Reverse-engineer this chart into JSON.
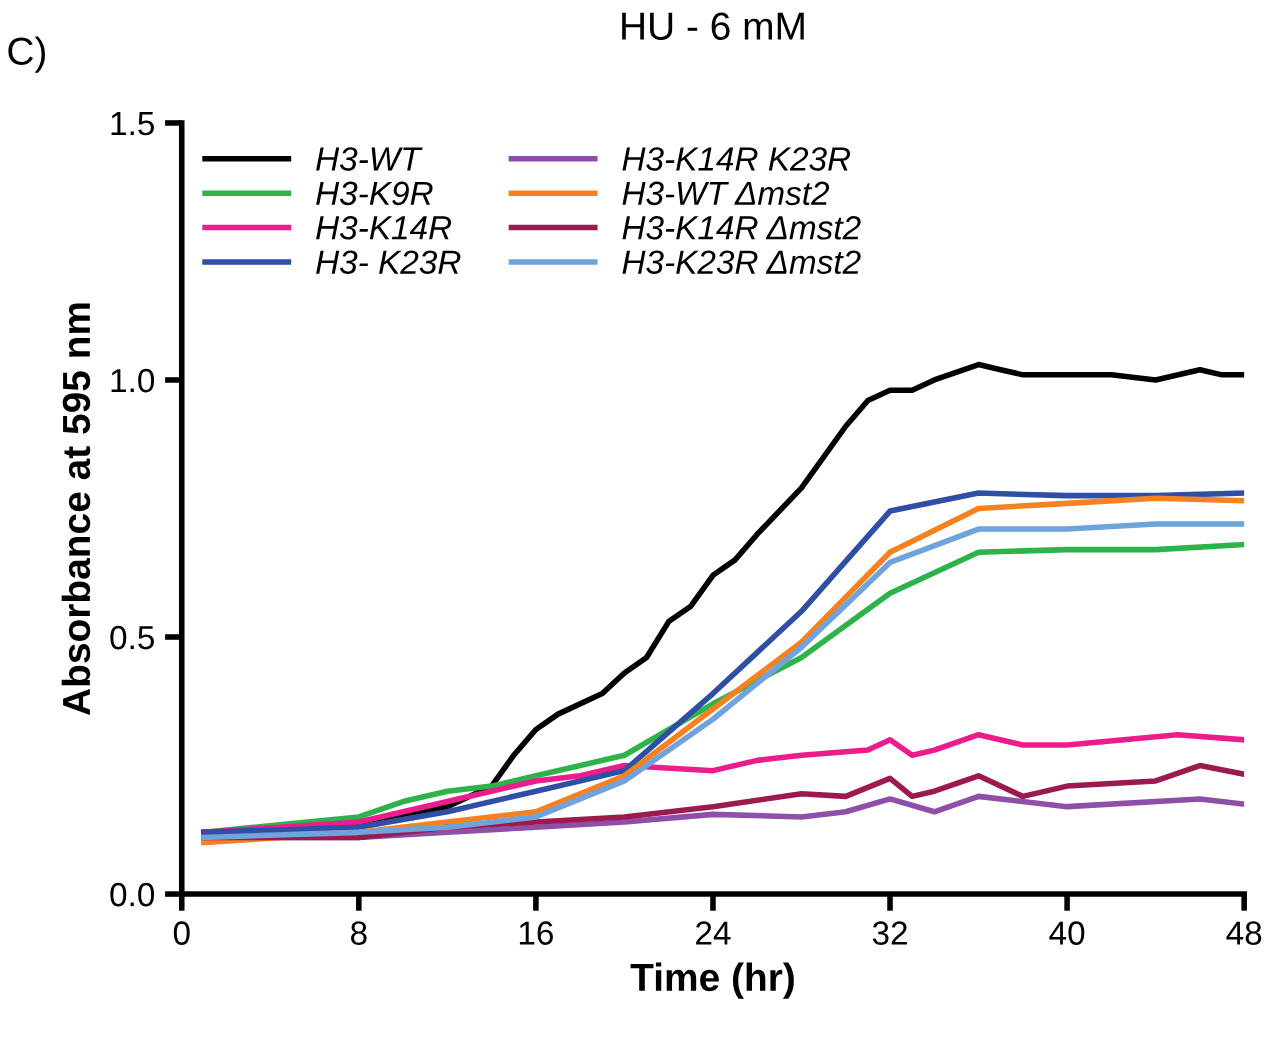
{
  "chart_data": {
    "type": "line",
    "title": "HU - 6 mM",
    "xlabel": "Time (hr)",
    "ylabel": "Absorbance at 595 nm",
    "annotations": [
      "C)"
    ],
    "xlim": [
      0,
      48
    ],
    "xticks": [
      0,
      8,
      16,
      24,
      32,
      40,
      48
    ],
    "ylim": [
      0,
      1.5
    ],
    "yticks": [
      {
        "value": 0,
        "label": "0.0"
      },
      {
        "value": 0.5,
        "label": "0.5"
      },
      {
        "value": 1,
        "label": "1.0"
      },
      {
        "value": 1.5,
        "label": "1.5"
      }
    ],
    "grid": false,
    "legend": "top left",
    "marker": "none",
    "line_style": "solid",
    "series": [
      {
        "name": "H3-WT",
        "color": "#000000",
        "x": [
          1,
          4,
          8,
          12,
          14,
          15,
          16,
          17,
          19,
          20,
          21,
          22,
          23,
          24,
          25,
          26,
          28,
          30,
          31,
          32,
          33,
          34,
          36,
          37,
          38,
          40,
          42,
          44,
          46,
          47,
          48
        ],
        "values": [
          0.12,
          0.12,
          0.14,
          0.17,
          0.21,
          0.27,
          0.32,
          0.35,
          0.39,
          0.43,
          0.46,
          0.53,
          0.56,
          0.62,
          0.65,
          0.7,
          0.79,
          0.91,
          0.96,
          0.98,
          0.98,
          1.0,
          1.03,
          1.02,
          1.01,
          1.01,
          1.01,
          1.0,
          1.02,
          1.01,
          1.01
        ]
      },
      {
        "name": "H3-K9R",
        "color": "#2db34a",
        "x": [
          1,
          8,
          10,
          12,
          14,
          16,
          20,
          24,
          28,
          32,
          36,
          40,
          44,
          48
        ],
        "values": [
          0.12,
          0.15,
          0.18,
          0.2,
          0.21,
          0.23,
          0.27,
          0.37,
          0.46,
          0.585,
          0.665,
          0.67,
          0.67,
          0.68
        ]
      },
      {
        "name": "H3-K14R",
        "color": "#ec1c8c",
        "x": [
          1,
          8,
          12,
          16,
          18,
          20,
          24,
          26,
          28,
          31,
          32,
          33,
          34,
          36,
          38,
          40,
          45,
          48
        ],
        "values": [
          0.12,
          0.14,
          0.18,
          0.22,
          0.23,
          0.25,
          0.24,
          0.26,
          0.27,
          0.28,
          0.3,
          0.27,
          0.28,
          0.31,
          0.29,
          0.29,
          0.31,
          0.3
        ]
      },
      {
        "name": "H3- K23R",
        "color": "#2e4fa3",
        "x": [
          1,
          8,
          12,
          16,
          20,
          24,
          28,
          32,
          36,
          40,
          44,
          48
        ],
        "values": [
          0.12,
          0.13,
          0.16,
          0.2,
          0.24,
          0.39,
          0.55,
          0.745,
          0.78,
          0.775,
          0.775,
          0.78
        ]
      },
      {
        "name": "H3-K14R K23R",
        "color": "#8e4fa8",
        "x": [
          1,
          8,
          12,
          16,
          20,
          24,
          28,
          30,
          32,
          34,
          36,
          40,
          46,
          48
        ],
        "values": [
          0.11,
          0.11,
          0.12,
          0.13,
          0.14,
          0.155,
          0.15,
          0.16,
          0.185,
          0.16,
          0.19,
          0.17,
          0.185,
          0.175
        ]
      },
      {
        "name": "H3-WT Δmst2",
        "color": "#f58220",
        "x": [
          1,
          8,
          12,
          16,
          20,
          24,
          28,
          32,
          36,
          40,
          44,
          48
        ],
        "values": [
          0.1,
          0.12,
          0.14,
          0.16,
          0.23,
          0.36,
          0.49,
          0.665,
          0.75,
          0.76,
          0.77,
          0.765
        ]
      },
      {
        "name": "H3-K14R Δmst2",
        "color": "#9b1b4f",
        "x": [
          1,
          8,
          12,
          16,
          20,
          24,
          28,
          30,
          32,
          33,
          34,
          36,
          38,
          40,
          44,
          46,
          48
        ],
        "values": [
          0.11,
          0.11,
          0.13,
          0.14,
          0.15,
          0.17,
          0.195,
          0.19,
          0.225,
          0.19,
          0.2,
          0.23,
          0.19,
          0.21,
          0.22,
          0.25,
          0.233
        ]
      },
      {
        "name": "H3-K23R Δmst2",
        "color": "#6fa3dc",
        "x": [
          1,
          8,
          12,
          16,
          20,
          24,
          28,
          32,
          36,
          40,
          44,
          48
        ],
        "values": [
          0.11,
          0.12,
          0.13,
          0.15,
          0.22,
          0.34,
          0.48,
          0.645,
          0.71,
          0.71,
          0.72,
          0.72
        ]
      }
    ]
  }
}
